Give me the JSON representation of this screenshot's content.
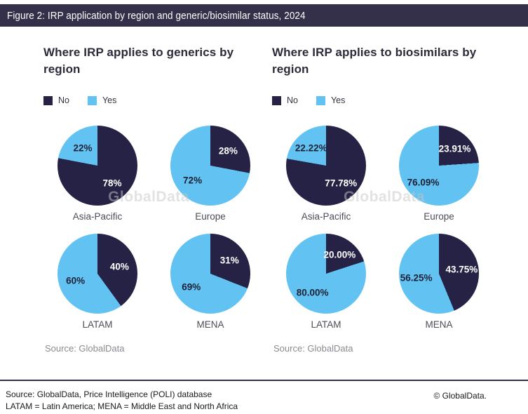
{
  "figure": {
    "header_title": "Figure 2: IRP application by region and generic/biosimilar status, 2024"
  },
  "colors": {
    "header_bg": "#343049",
    "no_slice": "#262245",
    "yes_slice": "#62c3f2",
    "watermark": "#c6c6c6"
  },
  "footer": {
    "source_line": "Source: GlobalData, Price Intelligence (POLI) database",
    "abbrev_line": "LATAM = Latin America; MENA = Middle East and North Africa",
    "copyright": "© GlobalData."
  },
  "chart_data": [
    {
      "type": "pie",
      "group": "generics",
      "title_lines": [
        "Where IRP applies to generics by",
        "region"
      ],
      "legend": [
        {
          "name": "No",
          "color": "#262245"
        },
        {
          "name": "Yes",
          "color": "#62c3f2"
        }
      ],
      "legend_position": "top-left",
      "source": "Source: GlobalData",
      "watermark": "GlobalData",
      "pies": [
        {
          "label": "Asia-Pacific",
          "slices": [
            {
              "name": "No",
              "value": 78,
              "text": "78%"
            },
            {
              "name": "Yes",
              "value": 22,
              "text": "22%"
            }
          ]
        },
        {
          "label": "Europe",
          "slices": [
            {
              "name": "No",
              "value": 28,
              "text": "28%"
            },
            {
              "name": "Yes",
              "value": 72,
              "text": "72%"
            }
          ]
        },
        {
          "label": "LATAM",
          "slices": [
            {
              "name": "No",
              "value": 40,
              "text": "40%"
            },
            {
              "name": "Yes",
              "value": 60,
              "text": "60%"
            }
          ]
        },
        {
          "label": "MENA",
          "slices": [
            {
              "name": "No",
              "value": 31,
              "text": "31%"
            },
            {
              "name": "Yes",
              "value": 69,
              "text": "69%"
            }
          ]
        }
      ]
    },
    {
      "type": "pie",
      "group": "biosimilars",
      "title_lines": [
        "Where IRP applies to biosimilars by",
        "region"
      ],
      "legend": [
        {
          "name": "No",
          "color": "#262245"
        },
        {
          "name": "Yes",
          "color": "#62c3f2"
        }
      ],
      "legend_position": "top-left",
      "source": "Source: GlobalData",
      "watermark": "GlobalData",
      "pies": [
        {
          "label": "Asia-Pacific",
          "slices": [
            {
              "name": "No",
              "value": 77.78,
              "text": "77.78%"
            },
            {
              "name": "Yes",
              "value": 22.22,
              "text": "22.22%"
            }
          ]
        },
        {
          "label": "Europe",
          "slices": [
            {
              "name": "No",
              "value": 23.91,
              "text": "23.91%"
            },
            {
              "name": "Yes",
              "value": 76.09,
              "text": "76.09%"
            }
          ]
        },
        {
          "label": "LATAM",
          "slices": [
            {
              "name": "No",
              "value": 20,
              "text": "20.00%"
            },
            {
              "name": "Yes",
              "value": 80,
              "text": "80.00%"
            }
          ]
        },
        {
          "label": "MENA",
          "slices": [
            {
              "name": "No",
              "value": 43.75,
              "text": "43.75%"
            },
            {
              "name": "Yes",
              "value": 56.25,
              "text": "56.25%"
            }
          ]
        }
      ]
    }
  ]
}
